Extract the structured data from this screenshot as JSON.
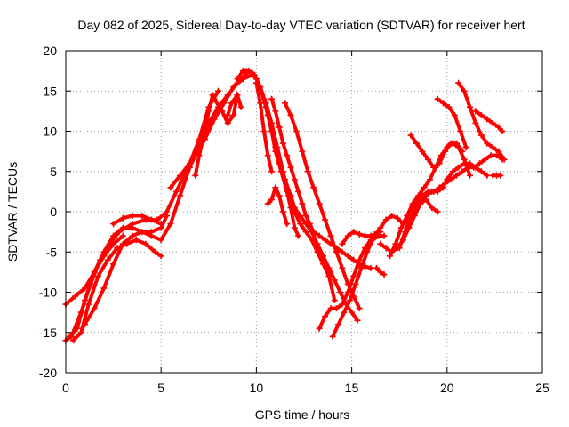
{
  "chart_data": {
    "type": "scatter",
    "title": "Day 082 of 2025, Sidereal Day-to-day VTEC variation (SDTVAR) for receiver hert",
    "xlabel": "GPS time / hours",
    "ylabel": "SDTVAR / TECUs",
    "xlim": [
      0,
      25
    ],
    "ylim": [
      -20,
      20
    ],
    "xticks": [
      0,
      5,
      10,
      15,
      20,
      25
    ],
    "yticks": [
      -20,
      -15,
      -10,
      -5,
      0,
      5,
      10,
      15,
      20
    ],
    "grid": true,
    "marker": "+",
    "color": "#ff0000",
    "series": [
      {
        "name": "trace-01",
        "x": [
          0.0,
          0.3,
          0.8,
          1.3,
          1.8,
          2.3,
          2.8,
          3.5,
          4.2,
          4.8,
          5.3,
          5.8,
          6.3,
          6.8,
          7.3,
          7.8,
          8.3,
          8.8,
          9.3,
          9.8
        ],
        "y": [
          -16,
          -15.5,
          -12.5,
          -9,
          -6,
          -4,
          -2.5,
          -1.5,
          -1,
          -1,
          0,
          2.5,
          5,
          7,
          9,
          11.5,
          13.5,
          15.5,
          16.5,
          17
        ]
      },
      {
        "name": "trace-02",
        "x": [
          0.2,
          0.6,
          1.0,
          1.5,
          2.0,
          2.5,
          3.0,
          3.5,
          4.0,
          4.5,
          5.0,
          5.5,
          6.0,
          6.5,
          7.0,
          7.5,
          8.0,
          8.5,
          9.0,
          9.5
        ],
        "y": [
          -15.5,
          -14.5,
          -11,
          -7.5,
          -5,
          -3,
          -2,
          -2,
          -2.5,
          -3,
          -3.5,
          -1.5,
          2,
          5.5,
          8,
          11,
          13,
          14.5,
          16,
          17.2
        ]
      },
      {
        "name": "trace-03",
        "x": [
          0.4,
          0.8,
          1.2,
          1.7,
          2.2,
          2.7,
          3.2,
          3.7,
          4.2,
          4.7,
          5.0
        ],
        "y": [
          -16,
          -15,
          -11.5,
          -8,
          -6,
          -4.5,
          -4,
          -3.5,
          -4,
          -5,
          -5.5
        ]
      },
      {
        "name": "trace-04",
        "x": [
          0.0,
          0.5,
          1.0,
          1.5,
          2.0,
          2.5,
          3.0
        ],
        "y": [
          -11.5,
          -10.5,
          -9.5,
          -7.5,
          -5.5,
          -4,
          -3
        ]
      },
      {
        "name": "trace-05",
        "x": [
          1.0,
          1.5,
          2.0,
          2.5,
          3.0,
          3.5,
          4.0,
          4.5,
          5.0,
          5.3
        ],
        "y": [
          -14,
          -12,
          -9.5,
          -6.5,
          -4,
          -3,
          -2.5,
          -2.5,
          -2,
          -0.5
        ]
      },
      {
        "name": "trace-06",
        "x": [
          2.5,
          3.0,
          3.5,
          4.0,
          4.5,
          5.0
        ],
        "y": [
          -1.5,
          -0.8,
          -0.5,
          -0.5,
          -1,
          -1.5
        ]
      },
      {
        "name": "trace-07",
        "x": [
          5.5,
          6.0,
          6.5,
          7.0,
          7.5,
          8.0
        ],
        "y": [
          3,
          4.5,
          6,
          9,
          13,
          15
        ]
      },
      {
        "name": "trace-08",
        "x": [
          6.8,
          7.0,
          7.3,
          7.5,
          7.7
        ],
        "y": [
          4.5,
          7,
          10,
          12.5,
          14.5
        ]
      },
      {
        "name": "trace-09",
        "x": [
          7.8,
          8.2,
          8.5,
          8.8,
          9.0
        ],
        "y": [
          14,
          12.5,
          11,
          12,
          14.5
        ]
      },
      {
        "name": "trace-10",
        "x": [
          8.5,
          8.7,
          9.0,
          9.2
        ],
        "y": [
          12,
          13.5,
          14.5,
          13
        ]
      },
      {
        "name": "trace-11",
        "x": [
          9.0,
          9.3,
          9.6,
          9.9,
          10.2,
          10.5,
          10.8,
          11.1,
          11.4,
          11.7,
          12.0,
          12.3,
          12.6,
          12.9,
          13.2,
          13.5,
          13.8,
          14.1
        ],
        "y": [
          16.5,
          17.5,
          17.5,
          17,
          15.5,
          13.5,
          11,
          8,
          5,
          2,
          0,
          -1.5,
          -2.5,
          -3.5,
          -5,
          -6.5,
          -8,
          -11
        ]
      },
      {
        "name": "trace-12",
        "x": [
          9.8,
          10.0,
          10.2,
          10.4,
          10.6,
          10.8,
          11.0,
          11.2,
          11.5,
          11.8,
          12.0,
          12.3,
          12.6,
          12.9,
          13.2,
          13.5,
          13.8,
          14.1,
          14.4,
          14.7,
          15.0,
          15.3
        ],
        "y": [
          17.2,
          16.5,
          15.5,
          14,
          12,
          10,
          8,
          6,
          4,
          2,
          0.5,
          -0.5,
          -1.5,
          -2.5,
          -4,
          -5.5,
          -7,
          -8.5,
          -10,
          -11.5,
          -12.5,
          -13.5
        ]
      },
      {
        "name": "trace-13",
        "x": [
          10.2,
          10.5,
          10.8,
          11.0,
          11.3,
          11.6,
          11.8,
          12.0,
          12.2
        ],
        "y": [
          15.5,
          13,
          10,
          7.5,
          5,
          2.5,
          0.5,
          -2,
          -3
        ]
      },
      {
        "name": "trace-14",
        "x": [
          10.0,
          10.2,
          10.4,
          10.6,
          10.8
        ],
        "y": [
          16,
          13.5,
          10,
          7,
          5
        ]
      },
      {
        "name": "trace-15",
        "x": [
          10.6,
          10.8,
          11.0,
          11.2,
          11.4,
          11.6
        ],
        "y": [
          1,
          1.5,
          3,
          2,
          0,
          -1.5
        ]
      },
      {
        "name": "trace-16",
        "x": [
          10.8,
          11.0,
          11.2,
          11.4,
          11.6,
          11.8,
          12.0,
          12.2,
          12.4,
          12.6,
          12.8,
          13.0,
          13.3,
          13.6,
          13.9,
          14.2,
          14.5,
          14.8,
          15.1,
          15.4,
          15.7,
          16.0
        ],
        "y": [
          14,
          12.5,
          10.5,
          8.5,
          7,
          5.5,
          4,
          2.5,
          1,
          -0.5,
          -1.5,
          -2.5,
          -3,
          -3.5,
          -4,
          -4.5,
          -5,
          -5.5,
          -6,
          -6.5,
          -6.8,
          -7
        ]
      },
      {
        "name": "trace-17",
        "x": [
          11.5,
          11.8,
          12.1,
          12.4,
          12.7,
          13.0,
          13.3,
          13.6,
          13.9,
          14.2,
          14.5,
          14.8,
          15.1,
          15.4
        ],
        "y": [
          13.5,
          12,
          10,
          7.5,
          5,
          3,
          1,
          -1,
          -3,
          -5,
          -7,
          -9,
          -10.5,
          -12
        ]
      },
      {
        "name": "trace-18",
        "x": [
          13.3,
          13.6,
          13.9,
          14.2,
          14.5,
          14.8,
          15.1,
          15.4,
          15.7,
          16.0,
          16.3,
          16.5
        ],
        "y": [
          -14.5,
          -13,
          -12,
          -12,
          -11.5,
          -10,
          -8,
          -6,
          -4.5,
          -3.5,
          -3,
          -2.5
        ]
      },
      {
        "name": "trace-19",
        "x": [
          14.0,
          14.3,
          14.6,
          14.9,
          15.2,
          15.5,
          15.8,
          16.1,
          16.4,
          16.7
        ],
        "y": [
          -15.5,
          -14,
          -12.5,
          -11,
          -9,
          -7,
          -5,
          -3.5,
          -3,
          -3
        ]
      },
      {
        "name": "trace-20",
        "x": [
          14.5,
          14.8,
          15.1,
          15.4,
          15.7,
          16.0,
          16.2
        ],
        "y": [
          -4,
          -3,
          -2.5,
          -2.8,
          -3,
          -3,
          -2.8
        ]
      },
      {
        "name": "trace-21",
        "x": [
          16.3,
          16.5,
          16.7
        ],
        "y": [
          -7,
          -7.5,
          -7.8
        ]
      },
      {
        "name": "trace-22",
        "x": [
          16.2,
          16.5,
          16.8,
          17.1,
          17.4,
          17.7,
          18.0,
          18.3,
          18.6,
          18.9,
          19.2,
          19.5
        ],
        "y": [
          -3,
          -2,
          -1,
          -0.5,
          -0.8,
          -1.5,
          -1,
          0,
          1,
          1.5,
          0.5,
          0
        ]
      },
      {
        "name": "trace-23",
        "x": [
          16.5,
          16.8,
          17.1,
          17.4,
          17.7,
          18.0,
          18.3,
          18.6,
          18.9,
          19.2,
          19.5,
          19.8
        ],
        "y": [
          -4,
          -4.5,
          -5,
          -4.5,
          -3.5,
          -2,
          -0.5,
          1,
          2,
          2.5,
          2.5,
          3
        ]
      },
      {
        "name": "trace-24",
        "x": [
          17.0,
          17.3,
          17.6,
          17.9,
          18.2,
          18.5,
          18.8,
          19.1,
          19.4,
          19.7,
          20.0,
          20.3,
          20.6,
          20.9,
          21.2
        ],
        "y": [
          -5.5,
          -4,
          -2,
          -0.5,
          1,
          2,
          3,
          4,
          5.5,
          7,
          8,
          8.5,
          8,
          6.5,
          4.5
        ]
      },
      {
        "name": "trace-25",
        "x": [
          17.5,
          17.8,
          18.1,
          18.4,
          18.7,
          19.0,
          19.3,
          19.6,
          19.9,
          20.2,
          20.5,
          20.8,
          21.1,
          21.4,
          21.7,
          22.0,
          22.3,
          22.6,
          22.9
        ],
        "y": [
          -4.5,
          -2.5,
          -0.5,
          1,
          2,
          2.5,
          2.5,
          3,
          3.5,
          4,
          4.5,
          5,
          5.5,
          5.5,
          6,
          6.5,
          7,
          7,
          6.5
        ]
      },
      {
        "name": "trace-26",
        "x": [
          18.1,
          18.4,
          18.7,
          19.0,
          19.3,
          19.6,
          19.9,
          20.2,
          20.5,
          20.8
        ],
        "y": [
          9.5,
          8.5,
          7.5,
          6.5,
          5.5,
          6,
          7.5,
          8.5,
          8.5,
          7.5
        ]
      },
      {
        "name": "trace-27",
        "x": [
          19.5,
          19.8,
          20.1,
          20.4,
          20.7,
          21.0
        ],
        "y": [
          14,
          13.5,
          13,
          12,
          10,
          8
        ]
      },
      {
        "name": "trace-28",
        "x": [
          20.6,
          20.9,
          21.2,
          21.5,
          21.8,
          22.1,
          22.4,
          22.7,
          23.0
        ],
        "y": [
          16,
          15,
          13,
          11,
          9.5,
          8.5,
          8,
          7.5,
          6.5
        ]
      },
      {
        "name": "trace-29",
        "x": [
          21.5,
          21.8,
          22.1,
          22.4,
          22.7,
          22.9
        ],
        "y": [
          12.5,
          12,
          11.5,
          11,
          10.5,
          10
        ]
      },
      {
        "name": "trace-30",
        "x": [
          20.0,
          20.3,
          20.6,
          20.9,
          21.2,
          21.5,
          21.8,
          22.1
        ],
        "y": [
          4,
          5,
          5.5,
          6,
          6,
          5.5,
          5,
          4.5
        ]
      },
      {
        "name": "trace-31",
        "x": [
          22.4,
          22.6,
          22.8
        ],
        "y": [
          4.5,
          4.5,
          4.5
        ]
      }
    ]
  }
}
